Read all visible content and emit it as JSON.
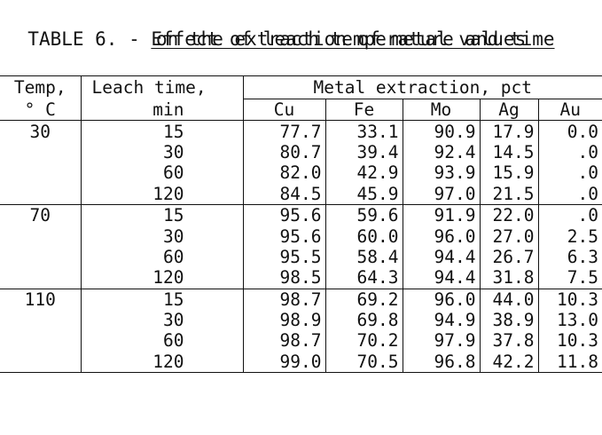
{
  "caption": {
    "label": "TABLE 6. - ",
    "title_line1": "Effect of leach temperature and time",
    "title_line2": "on the extraction of metal values"
  },
  "headers": {
    "temp_top": "Temp,",
    "temp_bottom": "° C",
    "time_top": "Leach time,",
    "time_bottom": "min",
    "metal_group": "Metal extraction, pct",
    "metals": [
      "Cu",
      "Fe",
      "Mo",
      "Ag",
      "Au"
    ]
  },
  "groups": [
    {
      "temp": "30",
      "rows": [
        {
          "time": "15",
          "values": [
            "77.7",
            "33.1",
            "90.9",
            "17.9",
            "0.0"
          ]
        },
        {
          "time": "30",
          "values": [
            "80.7",
            "39.4",
            "92.4",
            "14.5",
            ".0"
          ]
        },
        {
          "time": "60",
          "values": [
            "82.0",
            "42.9",
            "93.9",
            "15.9",
            ".0"
          ]
        },
        {
          "time": "120",
          "values": [
            "84.5",
            "45.9",
            "97.0",
            "21.5",
            ".0"
          ]
        }
      ]
    },
    {
      "temp": "70",
      "rows": [
        {
          "time": "15",
          "values": [
            "95.6",
            "59.6",
            "91.9",
            "22.0",
            ".0"
          ]
        },
        {
          "time": "30",
          "values": [
            "95.6",
            "60.0",
            "96.0",
            "27.0",
            "2.5"
          ]
        },
        {
          "time": "60",
          "values": [
            "95.5",
            "58.4",
            "94.4",
            "26.7",
            "6.3"
          ]
        },
        {
          "time": "120",
          "values": [
            "98.5",
            "64.3",
            "94.4",
            "31.8",
            "7.5"
          ]
        }
      ]
    },
    {
      "temp": "110",
      "rows": [
        {
          "time": "15",
          "values": [
            "98.7",
            "69.2",
            "96.0",
            "44.0",
            "10.3"
          ]
        },
        {
          "time": "30",
          "values": [
            "98.9",
            "69.8",
            "94.9",
            "38.9",
            "13.0"
          ]
        },
        {
          "time": "60",
          "values": [
            "98.7",
            "70.2",
            "97.9",
            "37.8",
            "10.3"
          ]
        },
        {
          "time": "120",
          "values": [
            "99.0",
            "70.5",
            "96.8",
            "42.2",
            "11.8"
          ]
        }
      ]
    }
  ]
}
